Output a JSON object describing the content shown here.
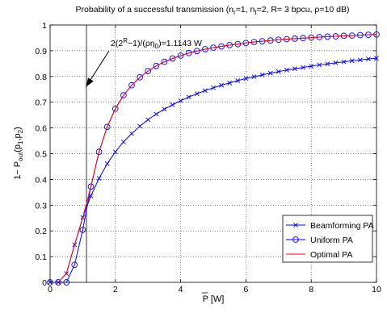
{
  "chart_data": {
    "type": "line",
    "title": "Probability of a successful transmission (n_r=1, n_t=2, R= 3 bpcu, ρ=10 dB)",
    "title_parts": {
      "prefix": "Probability of a successful transmission (n",
      "sub_r": "r",
      "mid1": "=1, n",
      "sub_t": "t",
      "suffix": "=2, R= 3 bpcu, ρ=10 dB)"
    },
    "xlabel": "P [W]",
    "ylabel": "1− P_out(p_1,p_2)",
    "ylabel_parts": {
      "a": "1− P",
      "sub_out": "out",
      "b": "(p",
      "sub1": "1",
      "c": ",p",
      "sub2": "2",
      "d": ")"
    },
    "xlim": [
      0,
      10
    ],
    "ylim": [
      0,
      1
    ],
    "xticks": [
      "0",
      "2",
      "4",
      "6",
      "8",
      "10"
    ],
    "yticks": [
      "0",
      "0.1",
      "0.2",
      "0.3",
      "0.4",
      "0.5",
      "0.6",
      "0.7",
      "0.8",
      "0.9",
      "1"
    ],
    "grid": true,
    "legend_position": "bottom-right",
    "threshold_x": 1.1143,
    "annotation": {
      "text": "2(2^R−1)/(ρη_0)=1.1143 W",
      "parts": {
        "a": "2(2",
        "sup": "R",
        "b": "−1)/(ρη",
        "sub": "0",
        "c": ")=1.1143 W"
      },
      "arrow_to": [
        1.05,
        0.75
      ]
    },
    "x": [
      0.0,
      0.25,
      0.5,
      0.75,
      1.0,
      1.25,
      1.5,
      1.75,
      2.0,
      2.25,
      2.5,
      2.75,
      3.0,
      3.25,
      3.5,
      3.75,
      4.0,
      4.25,
      4.5,
      4.75,
      5.0,
      5.25,
      5.5,
      5.75,
      6.0,
      6.25,
      6.5,
      6.75,
      7.0,
      7.25,
      7.5,
      7.75,
      8.0,
      8.25,
      8.5,
      8.75,
      9.0,
      9.25,
      9.5,
      9.75,
      10.0
    ],
    "series": [
      {
        "name": "Beamforming PA",
        "color": "#0000ff",
        "marker": "x",
        "values": [
          0.0,
          0.0,
          0.034,
          0.146,
          0.252,
          0.336,
          0.404,
          0.461,
          0.507,
          0.546,
          0.578,
          0.607,
          0.632,
          0.654,
          0.673,
          0.69,
          0.706,
          0.72,
          0.733,
          0.745,
          0.756,
          0.766,
          0.775,
          0.784,
          0.792,
          0.799,
          0.806,
          0.813,
          0.819,
          0.825,
          0.83,
          0.835,
          0.84,
          0.845,
          0.849,
          0.853,
          0.857,
          0.861,
          0.864,
          0.868,
          0.871
        ]
      },
      {
        "name": "Uniform PA",
        "color": "#0000ff",
        "marker": "o",
        "values": [
          0.0,
          0.0,
          0.0,
          0.068,
          0.204,
          0.372,
          0.507,
          0.604,
          0.675,
          0.727,
          0.766,
          0.797,
          0.821,
          0.841,
          0.857,
          0.87,
          0.881,
          0.891,
          0.899,
          0.906,
          0.912,
          0.917,
          0.922,
          0.926,
          0.93,
          0.934,
          0.937,
          0.94,
          0.943,
          0.945,
          0.947,
          0.949,
          0.951,
          0.953,
          0.955,
          0.956,
          0.958,
          0.959,
          0.961,
          0.962,
          0.963
        ]
      },
      {
        "name": "Optimal PA",
        "color": "#ff0000",
        "marker": "none",
        "values": [
          0.0,
          0.0,
          0.034,
          0.146,
          0.252,
          0.372,
          0.507,
          0.604,
          0.675,
          0.727,
          0.766,
          0.797,
          0.821,
          0.841,
          0.857,
          0.87,
          0.881,
          0.891,
          0.899,
          0.906,
          0.912,
          0.917,
          0.922,
          0.926,
          0.93,
          0.934,
          0.937,
          0.94,
          0.943,
          0.945,
          0.947,
          0.949,
          0.951,
          0.953,
          0.955,
          0.956,
          0.958,
          0.959,
          0.961,
          0.962,
          0.963
        ]
      }
    ]
  }
}
